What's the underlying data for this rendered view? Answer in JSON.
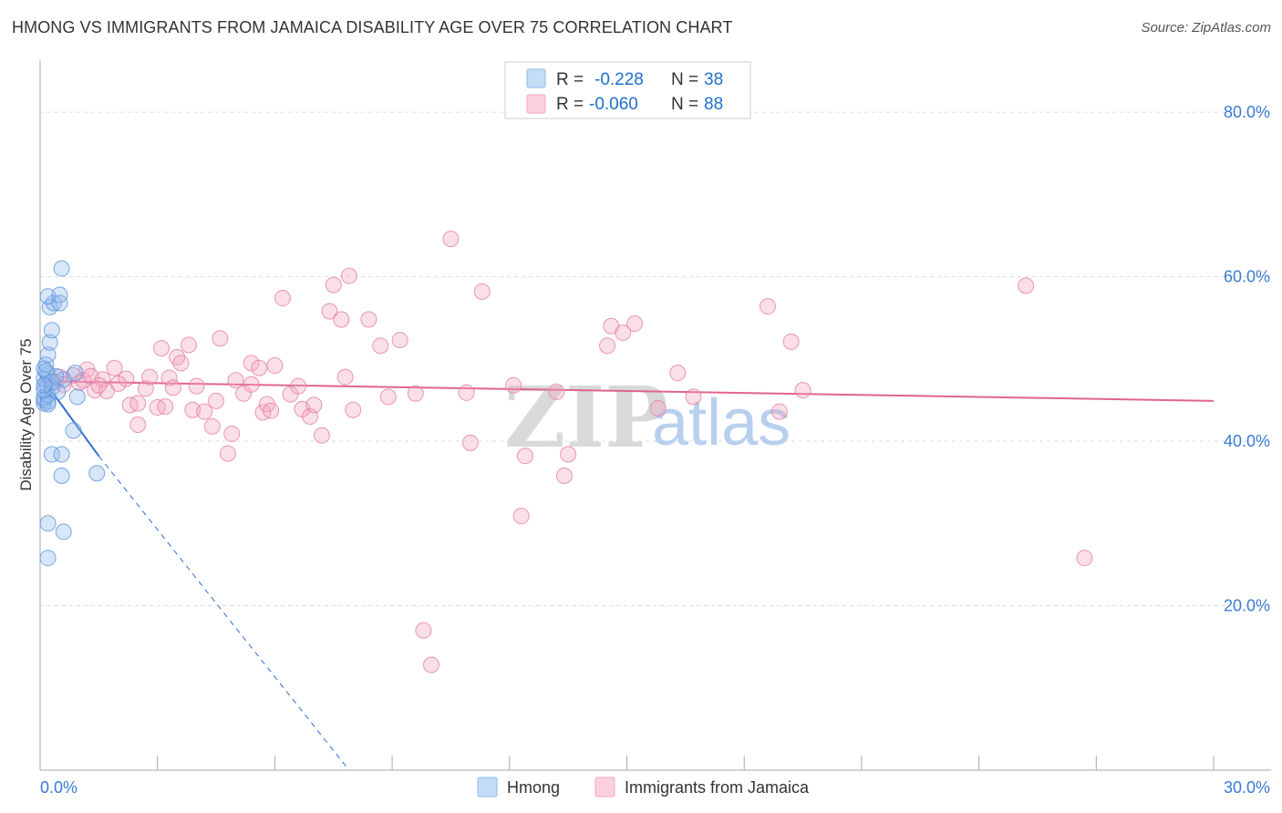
{
  "header": {
    "title": "HMONG VS IMMIGRANTS FROM JAMAICA DISABILITY AGE OVER 75 CORRELATION CHART",
    "source": "Source: ZipAtlas.com"
  },
  "watermark": {
    "zip": "ZIP",
    "atlas": "atlas"
  },
  "stats_box": {
    "rows": [
      {
        "r_label": "R =",
        "r_value": "-0.228",
        "n_label": "N =",
        "n_value": "38",
        "color": "#8fb8ee"
      },
      {
        "r_label": "R =",
        "r_value": "-0.060",
        "n_label": "N =",
        "n_value": "88",
        "color": "#f4a3bd"
      }
    ]
  },
  "chart_data": {
    "type": "scatter",
    "title": "HMONG VS IMMIGRANTS FROM JAMAICA DISABILITY AGE OVER 75 CORRELATION CHART",
    "xlabel": "",
    "ylabel": "Disability Age Over 75",
    "xlim": [
      0,
      30
    ],
    "ylim": [
      0,
      85
    ],
    "x_tick_labels": [
      {
        "value": 0,
        "label": "0.0%"
      },
      {
        "value": 30,
        "label": "30.0%"
      }
    ],
    "y_tick_labels": [
      {
        "value": 20,
        "label": "20.0%"
      },
      {
        "value": 40,
        "label": "40.0%"
      },
      {
        "value": 60,
        "label": "60.0%"
      },
      {
        "value": 80,
        "label": "80.0%"
      }
    ],
    "grid": true,
    "legend_position": "bottom-center",
    "series": [
      {
        "name": "Hmong",
        "color": "#8fb8ee",
        "stroke": "#5b93d9",
        "line_color": "#2f6fd0",
        "r": -0.228,
        "n": 38,
        "trend": {
          "x0": 0.0,
          "y0": 48.0,
          "x_solid_end": 1.5,
          "x_dash_end": 7.9
        },
        "points": [
          [
            0.1,
            44.6
          ],
          [
            0.1,
            45.0
          ],
          [
            0.2,
            44.8
          ],
          [
            0.1,
            45.3
          ],
          [
            0.2,
            45.6
          ],
          [
            0.1,
            46.2
          ],
          [
            0.15,
            47.0
          ],
          [
            0.1,
            47.6
          ],
          [
            0.2,
            48.2
          ],
          [
            0.1,
            48.8
          ],
          [
            0.15,
            49.3
          ],
          [
            0.2,
            50.5
          ],
          [
            0.25,
            52.0
          ],
          [
            0.3,
            53.5
          ],
          [
            0.25,
            56.3
          ],
          [
            0.35,
            56.8
          ],
          [
            0.2,
            57.6
          ],
          [
            0.5,
            56.8
          ],
          [
            0.5,
            57.8
          ],
          [
            0.55,
            61.0
          ],
          [
            0.3,
            46.5
          ],
          [
            0.6,
            47.5
          ],
          [
            0.4,
            47.9
          ],
          [
            0.9,
            48.3
          ],
          [
            0.95,
            45.4
          ],
          [
            0.85,
            41.3
          ],
          [
            0.3,
            38.4
          ],
          [
            0.55,
            38.4
          ],
          [
            0.55,
            35.8
          ],
          [
            1.45,
            36.1
          ],
          [
            0.2,
            30.0
          ],
          [
            0.6,
            29.0
          ],
          [
            0.2,
            25.8
          ],
          [
            0.2,
            44.5
          ],
          [
            0.45,
            46.0
          ],
          [
            0.15,
            48.5
          ],
          [
            0.3,
            47.2
          ],
          [
            0.1,
            46.8
          ]
        ]
      },
      {
        "name": "Immigrants from Jamaica",
        "color": "#f4a3bd",
        "stroke": "#e47fa2",
        "line_color": "#e0648f",
        "r": -0.06,
        "n": 88,
        "trend": {
          "x0": 0.0,
          "y0": 47.3,
          "x1": 30.0,
          "y1": 44.9
        },
        "points": [
          [
            0.4,
            47.2
          ],
          [
            0.5,
            47.8
          ],
          [
            0.6,
            46.9
          ],
          [
            0.85,
            48.0
          ],
          [
            1.0,
            47.1
          ],
          [
            1.1,
            47.4
          ],
          [
            1.2,
            48.7
          ],
          [
            1.3,
            47.9
          ],
          [
            1.4,
            46.2
          ],
          [
            1.6,
            47.5
          ],
          [
            1.7,
            46.1
          ],
          [
            1.9,
            48.9
          ],
          [
            2.0,
            47.0
          ],
          [
            2.2,
            47.6
          ],
          [
            2.3,
            44.4
          ],
          [
            2.5,
            44.6
          ],
          [
            2.5,
            42.0
          ],
          [
            2.7,
            46.4
          ],
          [
            2.8,
            47.8
          ],
          [
            3.0,
            44.1
          ],
          [
            3.1,
            51.3
          ],
          [
            3.3,
            47.7
          ],
          [
            3.4,
            46.5
          ],
          [
            3.5,
            50.2
          ],
          [
            3.6,
            49.5
          ],
          [
            3.8,
            51.7
          ],
          [
            3.9,
            43.8
          ],
          [
            4.0,
            46.7
          ],
          [
            4.2,
            43.6
          ],
          [
            4.4,
            41.8
          ],
          [
            4.5,
            44.9
          ],
          [
            4.6,
            52.5
          ],
          [
            4.8,
            38.5
          ],
          [
            4.9,
            40.9
          ],
          [
            5.0,
            47.4
          ],
          [
            5.2,
            45.8
          ],
          [
            5.4,
            46.9
          ],
          [
            5.4,
            49.5
          ],
          [
            5.6,
            48.9
          ],
          [
            5.7,
            43.5
          ],
          [
            5.8,
            44.5
          ],
          [
            5.9,
            43.7
          ],
          [
            6.0,
            49.2
          ],
          [
            6.2,
            57.4
          ],
          [
            6.4,
            45.7
          ],
          [
            6.6,
            46.7
          ],
          [
            6.7,
            43.9
          ],
          [
            6.9,
            43.0
          ],
          [
            7.0,
            44.4
          ],
          [
            7.2,
            40.7
          ],
          [
            7.4,
            55.8
          ],
          [
            7.5,
            59.0
          ],
          [
            7.7,
            54.8
          ],
          [
            7.8,
            47.8
          ],
          [
            7.9,
            60.1
          ],
          [
            8.0,
            43.8
          ],
          [
            8.4,
            54.8
          ],
          [
            8.7,
            51.6
          ],
          [
            8.9,
            45.4
          ],
          [
            9.2,
            52.3
          ],
          [
            9.6,
            45.8
          ],
          [
            9.8,
            17.0
          ],
          [
            10.0,
            12.8
          ],
          [
            10.5,
            64.6
          ],
          [
            10.9,
            45.9
          ],
          [
            11.0,
            39.8
          ],
          [
            11.3,
            58.2
          ],
          [
            12.1,
            46.8
          ],
          [
            12.3,
            30.9
          ],
          [
            12.4,
            38.2
          ],
          [
            13.2,
            46.0
          ],
          [
            13.4,
            35.8
          ],
          [
            13.5,
            38.4
          ],
          [
            14.5,
            51.6
          ],
          [
            14.6,
            54.0
          ],
          [
            14.9,
            53.2
          ],
          [
            15.2,
            54.3
          ],
          [
            15.8,
            44.0
          ],
          [
            16.3,
            48.3
          ],
          [
            16.7,
            45.4
          ],
          [
            18.6,
            56.4
          ],
          [
            18.9,
            43.6
          ],
          [
            19.2,
            52.1
          ],
          [
            19.5,
            46.2
          ],
          [
            25.2,
            58.9
          ],
          [
            26.7,
            25.8
          ],
          [
            3.2,
            44.2
          ],
          [
            1.5,
            46.8
          ]
        ]
      }
    ]
  }
}
